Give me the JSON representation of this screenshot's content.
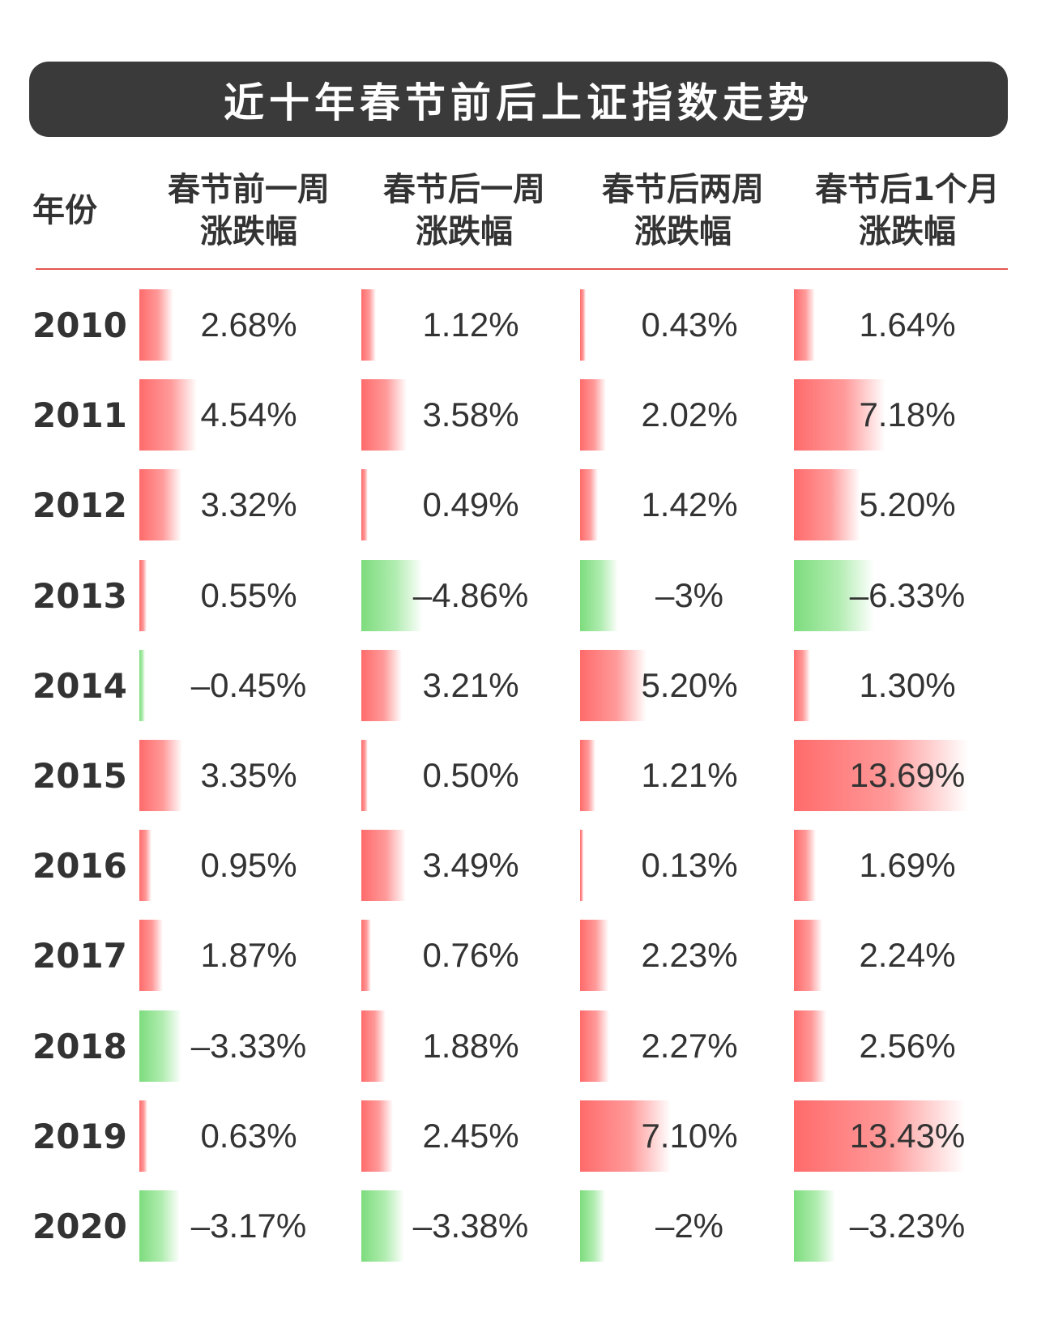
{
  "title": "近十年春节前后上证指数走势",
  "colors": {
    "title_bg": "#3a3a3a",
    "divider": "#e4574f",
    "positive": "#ff6b6b",
    "negative": "#7ddc7d"
  },
  "headers": {
    "year": "年份",
    "col1_line1": "春节前一周",
    "col1_line2": "涨跌幅",
    "col2_line1": "春节后一周",
    "col2_line2": "涨跌幅",
    "col3_line1": "春节后两周",
    "col3_line2": "涨跌幅",
    "col4_line1": "春节后1个月",
    "col4_line2": "涨跌幅"
  },
  "chart_data": {
    "type": "table",
    "title": "近十年春节前后上证指数走势",
    "columns": [
      "年份",
      "春节前一周涨跌幅",
      "春节后一周涨跌幅",
      "春节后两周涨跌幅",
      "春节后1个月涨跌幅"
    ],
    "years": [
      "2010",
      "2011",
      "2012",
      "2013",
      "2014",
      "2015",
      "2016",
      "2017",
      "2018",
      "2019",
      "2020"
    ],
    "labels": [
      [
        "2.68%",
        "1.12%",
        "0.43%",
        "1.64%"
      ],
      [
        "4.54%",
        "3.58%",
        "2.02%",
        "7.18%"
      ],
      [
        "3.32%",
        "0.49%",
        "1.42%",
        "5.20%"
      ],
      [
        "0.55%",
        "–4.86%",
        "–3%",
        "–6.33%"
      ],
      [
        "–0.45%",
        "3.21%",
        "5.20%",
        "1.30%"
      ],
      [
        "3.35%",
        "0.50%",
        "1.21%",
        "13.69%"
      ],
      [
        "0.95%",
        "3.49%",
        "0.13%",
        "1.69%"
      ],
      [
        "1.87%",
        "0.76%",
        "2.23%",
        "2.24%"
      ],
      [
        "–3.33%",
        "1.88%",
        "2.27%",
        "2.56%"
      ],
      [
        "0.63%",
        "2.45%",
        "7.10%",
        "13.43%"
      ],
      [
        "–3.17%",
        "–3.38%",
        "–2%",
        "–3.23%"
      ]
    ],
    "values": [
      [
        2.68,
        1.12,
        0.43,
        1.64
      ],
      [
        4.54,
        3.58,
        2.02,
        7.18
      ],
      [
        3.32,
        0.49,
        1.42,
        5.2
      ],
      [
        0.55,
        -4.86,
        -3,
        -6.33
      ],
      [
        -0.45,
        3.21,
        5.2,
        1.3
      ],
      [
        3.35,
        0.5,
        1.21,
        13.69
      ],
      [
        0.95,
        3.49,
        0.13,
        1.69
      ],
      [
        1.87,
        0.76,
        2.23,
        2.24
      ],
      [
        -3.33,
        1.88,
        2.27,
        2.56
      ],
      [
        0.63,
        2.45,
        7.1,
        13.43
      ],
      [
        -3.17,
        -3.38,
        -2,
        -3.23
      ]
    ]
  }
}
